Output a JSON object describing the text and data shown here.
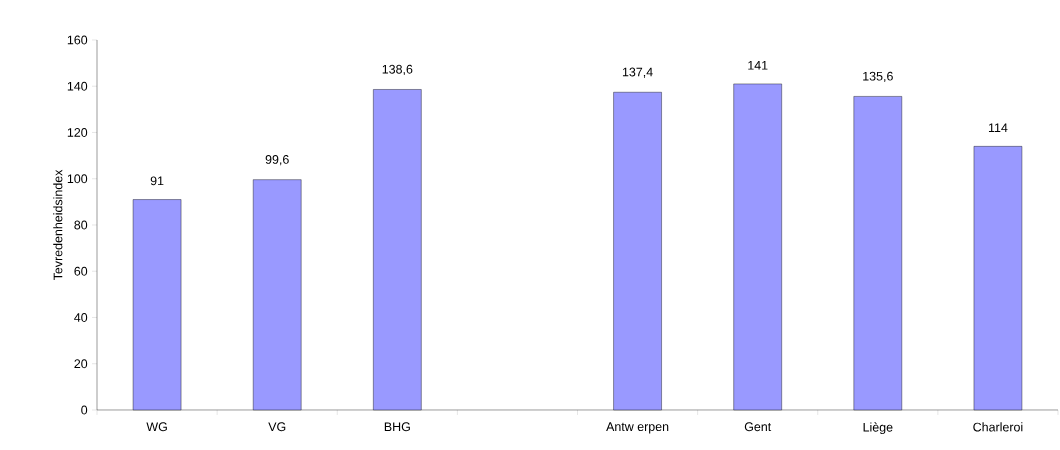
{
  "chart_data": {
    "type": "bar",
    "ylabel": "Tevredenheidsindex",
    "categories": [
      "WG",
      "VG",
      "BHG",
      null,
      "Antw erpen",
      "Gent",
      "Liège",
      "Charleroi"
    ],
    "values": [
      91,
      99.6,
      138.6,
      null,
      137.4,
      141,
      135.6,
      114
    ],
    "value_labels": [
      "91",
      "99,6",
      "138,6",
      null,
      "137,4",
      "141",
      "135,6",
      "114"
    ],
    "color": "#9999ff",
    "ylim": [
      0,
      160
    ],
    "yticks": [
      0,
      20,
      40,
      60,
      80,
      100,
      120,
      140,
      160
    ],
    "grid": false
  }
}
